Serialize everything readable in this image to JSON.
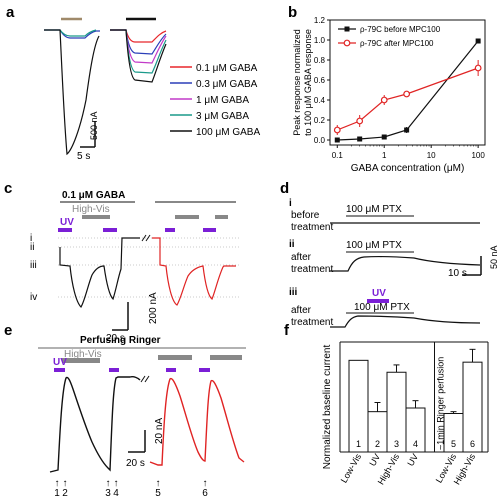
{
  "panels": {
    "a": {
      "label": "a",
      "scale_bar_y": "500 nA",
      "scale_bar_x": "5 s",
      "legend": [
        {
          "text": "0.1 μM GABA",
          "color": "#e8262b"
        },
        {
          "text": "0.3 μM GABA",
          "color": "#2b3fb8"
        },
        {
          "text": "1 μM GABA",
          "color": "#c23ac8"
        },
        {
          "text": "3 μM GABA",
          "color": "#1a9a8a"
        },
        {
          "text": "100 μM GABA",
          "color": "#111111"
        }
      ]
    },
    "b": {
      "label": "b"
    },
    "c": {
      "label": "c",
      "stim_label": "0.1 μM GABA",
      "light_label": "High-Vis",
      "uv_label": "UV",
      "levels": [
        "i",
        "ii",
        "iii",
        "iv"
      ],
      "scale_bar_y": "200 nA",
      "scale_bar_x": "20 s"
    },
    "d": {
      "label": "d",
      "rows": [
        {
          "num": "i",
          "cond1": "before",
          "cond2": "treatment",
          "drug": "100 μM PTX"
        },
        {
          "num": "ii",
          "cond1": "after",
          "cond2": "treatment",
          "drug": "100 μM PTX"
        },
        {
          "num": "iii",
          "cond1": "after",
          "cond2": "treatment",
          "drug": "100 μM PTX",
          "uv": "UV"
        }
      ],
      "scale_bar_y": "50 nA",
      "scale_bar_x": "10 s"
    },
    "e": {
      "label": "e",
      "title": "Perfusing Ringer",
      "light_label": "High-Vis",
      "uv_label": "UV",
      "scale_bar_y": "20 nA",
      "scale_bar_x": "20 s",
      "markers": [
        "1",
        "2",
        "3",
        "4",
        "5",
        "6"
      ]
    },
    "f": {
      "label": "f"
    }
  },
  "chart_data": [
    {
      "panel": "b",
      "type": "line",
      "title": "",
      "xlabel": "GABA concentration (μM)",
      "ylabel": "Peak response normalized to 100 μM GABA response",
      "xscale": "log",
      "xlim": [
        0.07,
        140
      ],
      "ylim": [
        -0.05,
        1.2
      ],
      "xticks": [
        0.1,
        1,
        10,
        100
      ],
      "xtick_labels": [
        "0.1",
        "1",
        "10",
        "100"
      ],
      "yticks": [
        0.0,
        0.2,
        0.4,
        0.6,
        0.8,
        1.0,
        1.2
      ],
      "ytick_labels": [
        "0.0",
        "0.2",
        "0.4",
        "0.6",
        "0.8",
        "1.0",
        "1.2"
      ],
      "legend_position": "top-left",
      "series": [
        {
          "name": "ρ-79C before MPC100",
          "color": "#111111",
          "marker": "square",
          "x": [
            0.1,
            0.3,
            1,
            3,
            100
          ],
          "y": [
            0.0,
            0.01,
            0.03,
            0.1,
            0.99
          ],
          "err": [
            0.01,
            0.01,
            0.02,
            0.03,
            0.02
          ]
        },
        {
          "name": "ρ-79C after MPC100",
          "color": "#e02424",
          "marker": "circle-open",
          "x": [
            0.1,
            0.3,
            1,
            3,
            100
          ],
          "y": [
            0.1,
            0.19,
            0.4,
            0.46,
            0.72
          ],
          "err": [
            0.05,
            0.06,
            0.05,
            0.03,
            0.08
          ]
        }
      ]
    },
    {
      "panel": "f",
      "type": "bar",
      "title": "",
      "ylabel": "Normalized baseline current",
      "ylim": [
        0,
        1.2
      ],
      "categories": [
        "Low-Vis",
        "UV",
        "High-Vis",
        "UV",
        "Low-Vis",
        "High-Vis"
      ],
      "bar_numbers": [
        "1",
        "2",
        "3",
        "4",
        "5",
        "6"
      ],
      "values": [
        1.0,
        0.44,
        0.87,
        0.48,
        0.42,
        0.98
      ],
      "errors": [
        0.0,
        0.1,
        0.08,
        0.08,
        0.02,
        0.14
      ],
      "separator_label": "~1min Ringer perfusion"
    }
  ]
}
